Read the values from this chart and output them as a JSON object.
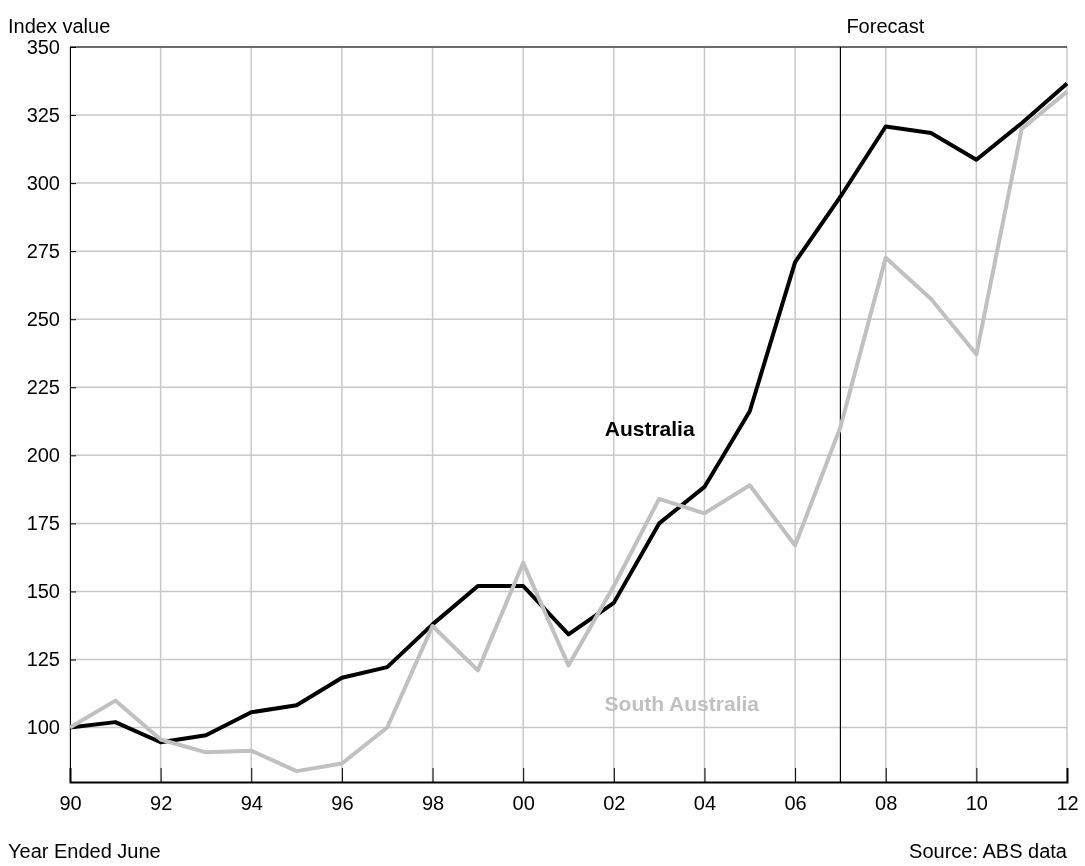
{
  "chart_data": {
    "type": "line",
    "ylabel": "Index value",
    "xlabel": "Year Ended June",
    "x": [
      1990,
      1991,
      1992,
      1993,
      1994,
      1995,
      1996,
      1997,
      1998,
      1999,
      2000,
      2001,
      2002,
      2003,
      2004,
      2005,
      2006,
      2007,
      2008,
      2009,
      2010,
      2011,
      2012
    ],
    "series": [
      {
        "name": "Australia",
        "color": "#000000",
        "values": [
          100,
          102,
          94.6,
          97.2,
          105.6,
          108.2,
          118.3,
          122.2,
          137.9,
          152,
          152,
          134.2,
          145.8,
          175,
          188.4,
          216.2,
          271,
          295,
          320.8,
          318.4,
          308.6,
          322,
          336.6
        ]
      },
      {
        "name": "South Australia",
        "color": "#c0c0c0",
        "values": [
          100,
          109.9,
          95.6,
          90.9,
          91.5,
          84,
          86.8,
          100,
          137.3,
          121,
          160.5,
          122.8,
          152,
          184,
          178.7,
          189,
          166.9,
          210.3,
          272.6,
          257.4,
          237.1,
          319.9,
          333.6
        ]
      }
    ],
    "xlim": [
      1990,
      2012
    ],
    "xticks": [
      {
        "value": 1990,
        "label": "90"
      },
      {
        "value": 1992,
        "label": "92"
      },
      {
        "value": 1994,
        "label": "94"
      },
      {
        "value": 1996,
        "label": "96"
      },
      {
        "value": 1998,
        "label": "98"
      },
      {
        "value": 2000,
        "label": "00"
      },
      {
        "value": 2002,
        "label": "02"
      },
      {
        "value": 2004,
        "label": "04"
      },
      {
        "value": 2006,
        "label": "06"
      },
      {
        "value": 2008,
        "label": "08"
      },
      {
        "value": 2010,
        "label": "10"
      },
      {
        "value": 2012,
        "label": "12"
      }
    ],
    "ylim": [
      80,
      350
    ],
    "yticks": [
      100,
      125,
      150,
      175,
      200,
      225,
      250,
      275,
      300,
      325,
      350
    ],
    "grid": true,
    "legend": false,
    "marker": "none",
    "line_style": "solid",
    "ref_lines": [
      {
        "axis": "x",
        "value": 2007,
        "label": "Forecast",
        "color": "#000000"
      }
    ],
    "annotations": [
      "Source: ABS data"
    ]
  }
}
